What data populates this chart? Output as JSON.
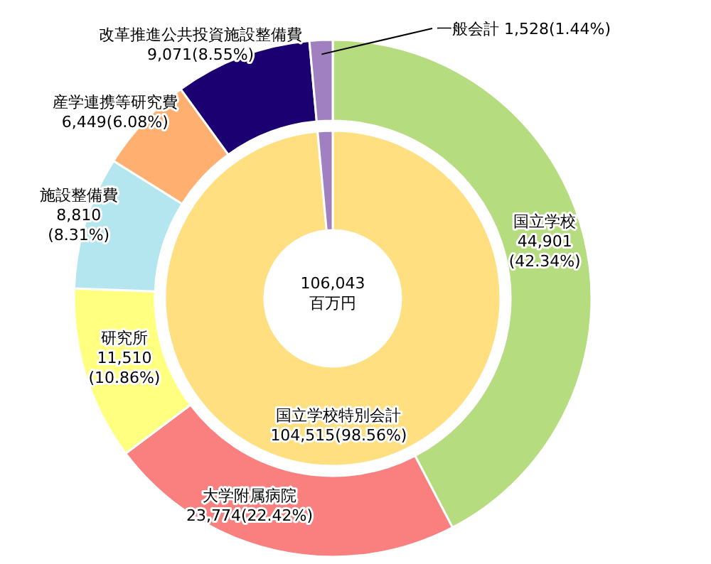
{
  "chart_data": [
    {
      "type": "donut",
      "categories": [
        "国立学校",
        "大学附属病院",
        "研究所",
        "施設整備費",
        "産学連携等研究費",
        "改革推進公共投資施設整備費",
        "一般会計"
      ],
      "values": [
        44901,
        23774,
        11510,
        8810,
        6449,
        9071,
        1528
      ],
      "value_labels": [
        "44,901\n(42.34%)",
        "23,774(22.42%)",
        "11,510\n(10.86%)",
        "8,810\n(8.31%)",
        "6,449(6.08%)",
        "9,071(8.55%)",
        "1,528(1.44%)"
      ],
      "colors": [
        "#b5dc7f",
        "#fa8080",
        "#ffff80",
        "#b4e6f0",
        "#ffb070",
        "#1a0070",
        "#a080c0"
      ]
    },
    {
      "type": "donut",
      "categories": [
        "国立学校特別会計",
        null
      ],
      "values": [
        104515,
        1528
      ],
      "value_labels": [
        "104,515(98.56%)",
        null
      ],
      "colors": [
        "#ffdf80",
        "#a080c0"
      ],
      "annotations": [
        "106,043\n百万円"
      ]
    }
  ]
}
